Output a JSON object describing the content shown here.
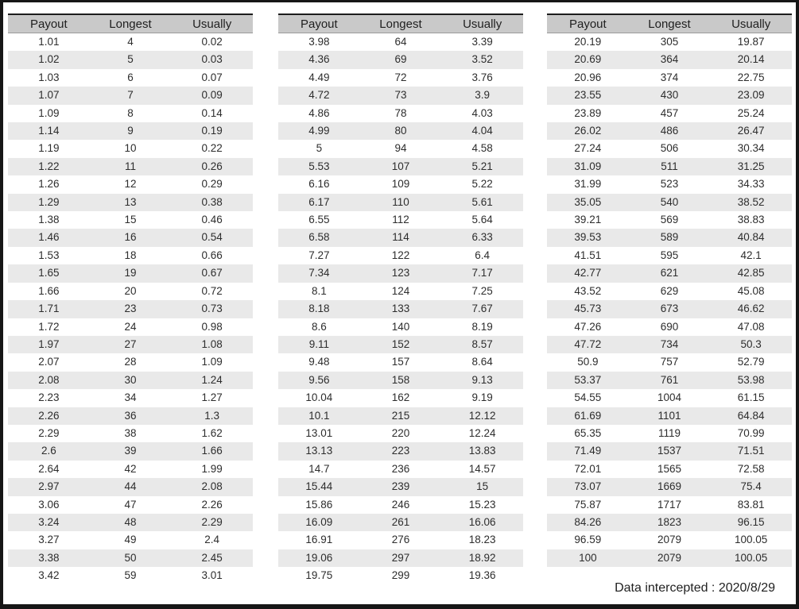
{
  "chart_data": [
    {
      "type": "table",
      "columns": [
        "Payout",
        "Longest",
        "Usually"
      ],
      "rows": [
        [
          "1.01",
          "4",
          "0.02"
        ],
        [
          "1.02",
          "5",
          "0.03"
        ],
        [
          "1.03",
          "6",
          "0.07"
        ],
        [
          "1.07",
          "7",
          "0.09"
        ],
        [
          "1.09",
          "8",
          "0.14"
        ],
        [
          "1.14",
          "9",
          "0.19"
        ],
        [
          "1.19",
          "10",
          "0.22"
        ],
        [
          "1.22",
          "11",
          "0.26"
        ],
        [
          "1.26",
          "12",
          "0.29"
        ],
        [
          "1.29",
          "13",
          "0.38"
        ],
        [
          "1.38",
          "15",
          "0.46"
        ],
        [
          "1.46",
          "16",
          "0.54"
        ],
        [
          "1.53",
          "18",
          "0.66"
        ],
        [
          "1.65",
          "19",
          "0.67"
        ],
        [
          "1.66",
          "20",
          "0.72"
        ],
        [
          "1.71",
          "23",
          "0.73"
        ],
        [
          "1.72",
          "24",
          "0.98"
        ],
        [
          "1.97",
          "27",
          "1.08"
        ],
        [
          "2.07",
          "28",
          "1.09"
        ],
        [
          "2.08",
          "30",
          "1.24"
        ],
        [
          "2.23",
          "34",
          "1.27"
        ],
        [
          "2.26",
          "36",
          "1.3"
        ],
        [
          "2.29",
          "38",
          "1.62"
        ],
        [
          "2.6",
          "39",
          "1.66"
        ],
        [
          "2.64",
          "42",
          "1.99"
        ],
        [
          "2.97",
          "44",
          "2.08"
        ],
        [
          "3.06",
          "47",
          "2.26"
        ],
        [
          "3.24",
          "48",
          "2.29"
        ],
        [
          "3.27",
          "49",
          "2.4"
        ],
        [
          "3.38",
          "50",
          "2.45"
        ],
        [
          "3.42",
          "59",
          "3.01"
        ]
      ]
    },
    {
      "type": "table",
      "columns": [
        "Payout",
        "Longest",
        "Usually"
      ],
      "rows": [
        [
          "3.98",
          "64",
          "3.39"
        ],
        [
          "4.36",
          "69",
          "3.52"
        ],
        [
          "4.49",
          "72",
          "3.76"
        ],
        [
          "4.72",
          "73",
          "3.9"
        ],
        [
          "4.86",
          "78",
          "4.03"
        ],
        [
          "4.99",
          "80",
          "4.04"
        ],
        [
          "5",
          "94",
          "4.58"
        ],
        [
          "5.53",
          "107",
          "5.21"
        ],
        [
          "6.16",
          "109",
          "5.22"
        ],
        [
          "6.17",
          "110",
          "5.61"
        ],
        [
          "6.55",
          "112",
          "5.64"
        ],
        [
          "6.58",
          "114",
          "6.33"
        ],
        [
          "7.27",
          "122",
          "6.4"
        ],
        [
          "7.34",
          "123",
          "7.17"
        ],
        [
          "8.1",
          "124",
          "7.25"
        ],
        [
          "8.18",
          "133",
          "7.67"
        ],
        [
          "8.6",
          "140",
          "8.19"
        ],
        [
          "9.11",
          "152",
          "8.57"
        ],
        [
          "9.48",
          "157",
          "8.64"
        ],
        [
          "9.56",
          "158",
          "9.13"
        ],
        [
          "10.04",
          "162",
          "9.19"
        ],
        [
          "10.1",
          "215",
          "12.12"
        ],
        [
          "13.01",
          "220",
          "12.24"
        ],
        [
          "13.13",
          "223",
          "13.83"
        ],
        [
          "14.7",
          "236",
          "14.57"
        ],
        [
          "15.44",
          "239",
          "15"
        ],
        [
          "15.86",
          "246",
          "15.23"
        ],
        [
          "16.09",
          "261",
          "16.06"
        ],
        [
          "16.91",
          "276",
          "18.23"
        ],
        [
          "19.06",
          "297",
          "18.92"
        ],
        [
          "19.75",
          "299",
          "19.36"
        ]
      ]
    },
    {
      "type": "table",
      "columns": [
        "Payout",
        "Longest",
        "Usually"
      ],
      "rows": [
        [
          "20.19",
          "305",
          "19.87"
        ],
        [
          "20.69",
          "364",
          "20.14"
        ],
        [
          "20.96",
          "374",
          "22.75"
        ],
        [
          "23.55",
          "430",
          "23.09"
        ],
        [
          "23.89",
          "457",
          "25.24"
        ],
        [
          "26.02",
          "486",
          "26.47"
        ],
        [
          "27.24",
          "506",
          "30.34"
        ],
        [
          "31.09",
          "511",
          "31.25"
        ],
        [
          "31.99",
          "523",
          "34.33"
        ],
        [
          "35.05",
          "540",
          "38.52"
        ],
        [
          "39.21",
          "569",
          "38.83"
        ],
        [
          "39.53",
          "589",
          "40.84"
        ],
        [
          "41.51",
          "595",
          "42.1"
        ],
        [
          "42.77",
          "621",
          "42.85"
        ],
        [
          "43.52",
          "629",
          "45.08"
        ],
        [
          "45.73",
          "673",
          "46.62"
        ],
        [
          "47.26",
          "690",
          "47.08"
        ],
        [
          "47.72",
          "734",
          "50.3"
        ],
        [
          "50.9",
          "757",
          "52.79"
        ],
        [
          "53.37",
          "761",
          "53.98"
        ],
        [
          "54.55",
          "1004",
          "61.15"
        ],
        [
          "61.69",
          "1101",
          "64.84"
        ],
        [
          "65.35",
          "1119",
          "70.99"
        ],
        [
          "71.49",
          "1537",
          "71.51"
        ],
        [
          "72.01",
          "1565",
          "72.58"
        ],
        [
          "73.07",
          "1669",
          "75.4"
        ],
        [
          "75.87",
          "1717",
          "83.81"
        ],
        [
          "84.26",
          "1823",
          "96.15"
        ],
        [
          "96.59",
          "2079",
          "100.05"
        ],
        [
          "100",
          "2079",
          "100.05"
        ]
      ]
    }
  ],
  "footer": {
    "text": "Data intercepted : 2020/8/29"
  },
  "colors": {
    "header_bg": "#c9c9c9",
    "row_stripe": "#e9e9e9",
    "frame": "#161616",
    "text": "#2d2d2d"
  }
}
